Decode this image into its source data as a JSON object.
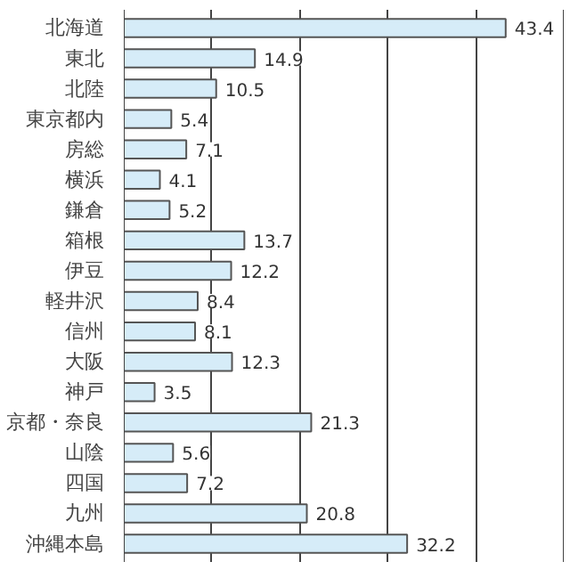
{
  "chart_data": {
    "type": "bar",
    "orientation": "horizontal",
    "categories": [
      "北海道",
      "東北",
      "北陸",
      "東京都内",
      "房総",
      "横浜",
      "鎌倉",
      "箱根",
      "伊豆",
      "軽井沢",
      "信州",
      "大阪",
      "神戸",
      "京都・奈良",
      "山陰",
      "四国",
      "九州",
      "沖縄本島"
    ],
    "values": [
      43.4,
      14.9,
      10.5,
      5.4,
      7.1,
      4.1,
      5.2,
      13.7,
      12.2,
      8.4,
      8.1,
      12.3,
      3.5,
      21.3,
      5.6,
      7.2,
      20.8,
      32.2
    ],
    "color": "#d6ecf8",
    "xlim": [
      0,
      50
    ],
    "xticks": [
      {
        "value": 0,
        "label": null
      },
      {
        "value": 10,
        "label": null
      },
      {
        "value": 20,
        "label": null
      },
      {
        "value": 30,
        "label": null
      },
      {
        "value": 40,
        "label": null
      },
      {
        "value": 50,
        "label": null
      }
    ],
    "grid": "x",
    "tick_labels": "y",
    "data_labels": true
  }
}
